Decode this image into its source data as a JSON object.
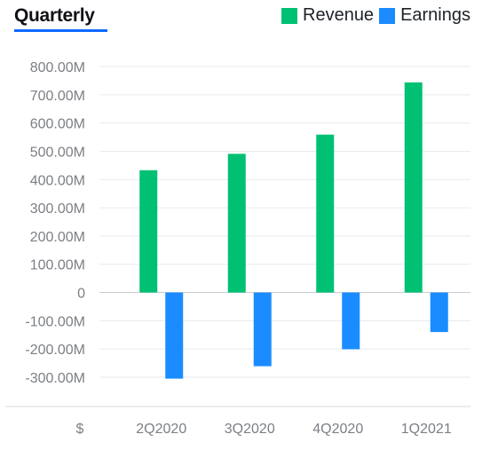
{
  "header": {
    "tab_label": "Quarterly"
  },
  "chart_data": {
    "type": "bar",
    "categories": [
      "2Q2020",
      "3Q2020",
      "4Q2020",
      "1Q2021"
    ],
    "series": [
      {
        "name": "Revenue",
        "color": "#00c073",
        "values": [
          433000000,
          491000000,
          559000000,
          744000000
        ]
      },
      {
        "name": "Earnings",
        "color": "#1a8cff",
        "values": [
          -305000000,
          -261000000,
          -201000000,
          -140000000
        ]
      }
    ],
    "y_ticks": [
      800000000,
      700000000,
      600000000,
      500000000,
      400000000,
      300000000,
      200000000,
      100000000,
      0,
      -100000000,
      -200000000,
      -300000000
    ],
    "y_tick_labels": [
      "800.00M",
      "700.00M",
      "600.00M",
      "500.00M",
      "400.00M",
      "300.00M",
      "200.00M",
      "100.00M",
      "0",
      "-100.00M",
      "-200.00M",
      "-300.00M"
    ],
    "ylim": [
      -300000000,
      800000000
    ],
    "currency_label": "$",
    "grid": true,
    "legend_position": "top-right"
  }
}
